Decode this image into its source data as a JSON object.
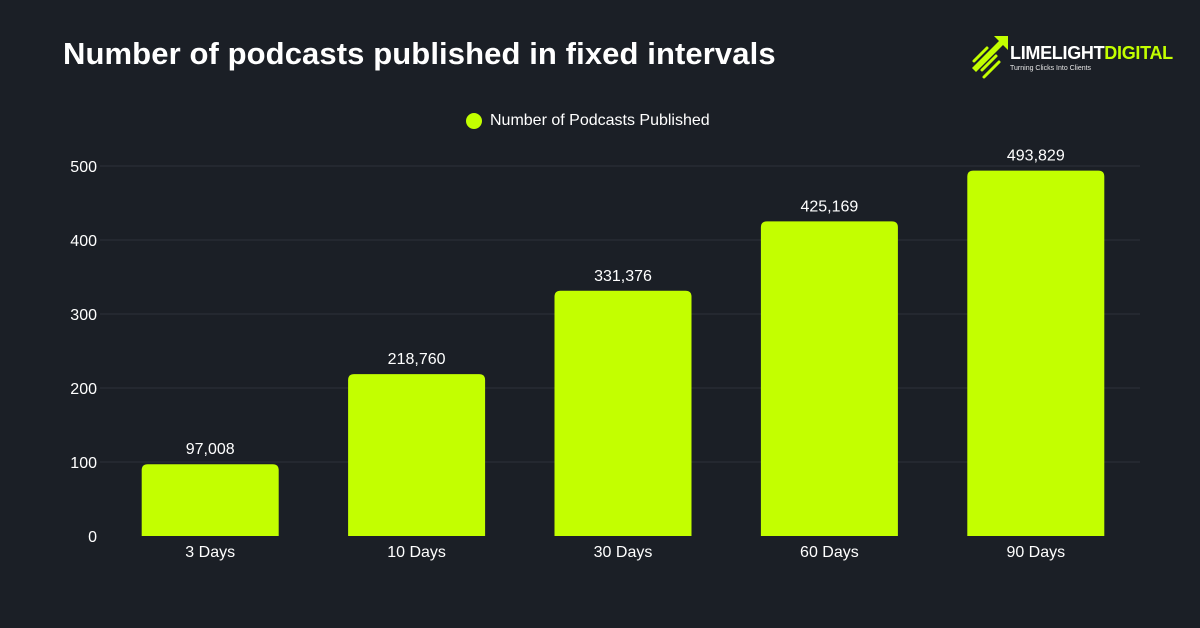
{
  "title": "Number of podcasts published in fixed intervals",
  "logo": {
    "name_part1": "LIMELIGHT",
    "name_part2": "DIGITAL",
    "tagline": "Turning Clicks Into Clients"
  },
  "colors": {
    "background": "#1b1f26",
    "bar": "#c3ff00",
    "gridline": "#2c313a",
    "text": "#ffffff"
  },
  "chart_data": {
    "type": "bar",
    "title": "Number of podcasts published in fixed intervals",
    "categories": [
      "3 Days",
      "10 Days",
      "30 Days",
      "60 Days",
      "90 Days"
    ],
    "series": [
      {
        "name": "Number of Podcasts Published",
        "values": [
          97008,
          218760,
          331376,
          425169,
          493829
        ],
        "labels": [
          "97,008",
          "218,760",
          "331,376",
          "425,169",
          "493,829"
        ]
      }
    ],
    "y_ticks": [
      "0",
      "100",
      "200",
      "300",
      "400",
      "500"
    ],
    "y_tick_values": [
      0,
      100000,
      200000,
      300000,
      400000,
      500000
    ],
    "ylim": [
      0,
      500000
    ],
    "xlabel": "",
    "ylabel": "",
    "grid": true,
    "legend_position": "top-center"
  }
}
